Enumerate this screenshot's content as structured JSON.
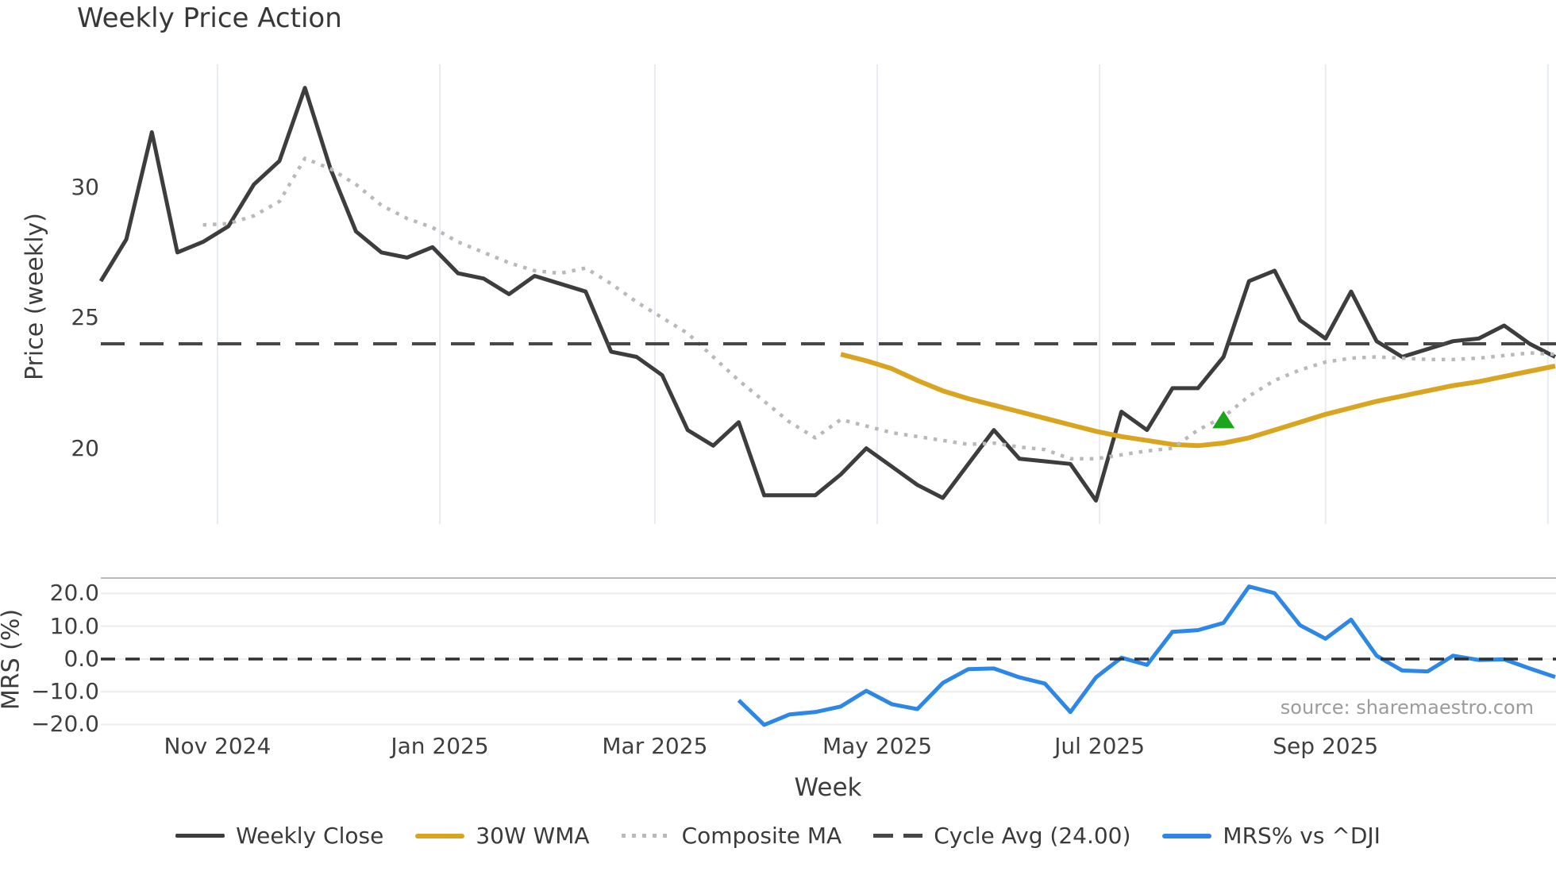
{
  "title": "Weekly Price Action",
  "source_text": "source: sharemaestro.com",
  "price_panel": {
    "ylabel": "Price (weekly)",
    "yticks": [
      {
        "label": "30",
        "value": 30
      },
      {
        "label": "25",
        "value": 25
      },
      {
        "label": "20",
        "value": 20
      }
    ]
  },
  "mrs_panel": {
    "ylabel": "MRS (%)",
    "yticks": [
      {
        "label": "20.0",
        "value": 20
      },
      {
        "label": "10.0",
        "value": 10
      },
      {
        "label": "0.0",
        "value": 0
      },
      {
        "label": "−10.0",
        "value": -10
      },
      {
        "label": "−20.0",
        "value": -20
      }
    ]
  },
  "x_axis": {
    "label": "Week",
    "ticks": [
      {
        "label": "Nov 2024",
        "week": 4.571
      },
      {
        "label": "Jan 2025",
        "week": 13.286
      },
      {
        "label": "Mar 2025",
        "week": 21.714
      },
      {
        "label": "May 2025",
        "week": 30.429
      },
      {
        "label": "Jul 2025",
        "week": 39.143
      },
      {
        "label": "Sep 2025",
        "week": 48.0
      },
      {
        "label": "",
        "week": 56.714
      }
    ]
  },
  "legend": {
    "items": [
      {
        "label": "Weekly Close",
        "swatch": "solid-dark-line"
      },
      {
        "label": "30W WMA",
        "swatch": "solid-gold-line"
      },
      {
        "label": "Composite MA",
        "swatch": "dotted-gray-line"
      },
      {
        "label": "Cycle Avg (24.00)",
        "swatch": "dashed-dark-line"
      },
      {
        "label": "MRS% vs ^DJI",
        "swatch": "solid-blue-line"
      }
    ]
  },
  "colors": {
    "weekly_close": "#3d3d3d",
    "wma_30w": "#d9a521",
    "composite_ma": "#b9b9b9",
    "cycle_avg_dash": "#474747",
    "mrs_line": "#2d87e6",
    "mrs_zero_dash": "#2f2f2f",
    "buy_marker_green": "#1aa51a",
    "grid_vertical": "#e8ecf2",
    "grid_horizontal": "#ececec",
    "mrs_top_border": "#bbbbbb",
    "tick_text": "#3f3f3f",
    "source_text": "#9b9b9b"
  },
  "chart_data": [
    {
      "type": "line",
      "panel": "price",
      "title": "Weekly Price Action",
      "xlabel": "Week",
      "ylabel": "Price (weekly)",
      "ylim": [
        17.1,
        34.7
      ],
      "grid": "vertical-only",
      "legend_position": "bottom-center",
      "x": [
        "2024-09-30",
        "2024-10-07",
        "2024-10-14",
        "2024-10-21",
        "2024-10-28",
        "2024-11-04",
        "2024-11-11",
        "2024-11-18",
        "2024-11-25",
        "2024-12-02",
        "2024-12-09",
        "2024-12-16",
        "2024-12-23",
        "2024-12-30",
        "2025-01-06",
        "2025-01-13",
        "2025-01-20",
        "2025-01-27",
        "2025-02-03",
        "2025-02-10",
        "2025-02-17",
        "2025-02-24",
        "2025-03-03",
        "2025-03-10",
        "2025-03-17",
        "2025-03-24",
        "2025-03-31",
        "2025-04-07",
        "2025-04-14",
        "2025-04-21",
        "2025-04-28",
        "2025-05-05",
        "2025-05-12",
        "2025-05-19",
        "2025-05-26",
        "2025-06-02",
        "2025-06-09",
        "2025-06-16",
        "2025-06-23",
        "2025-06-30",
        "2025-07-07",
        "2025-07-14",
        "2025-07-21",
        "2025-07-28",
        "2025-08-04",
        "2025-08-11",
        "2025-08-18",
        "2025-08-25",
        "2025-09-01",
        "2025-09-08",
        "2025-09-15",
        "2025-09-22",
        "2025-09-29",
        "2025-10-06",
        "2025-10-13",
        "2025-10-20",
        "2025-10-27",
        "2025-11-03"
      ],
      "series": [
        {
          "name": "Weekly Close",
          "color": "#3d3d3d",
          "style": "solid",
          "values": [
            26.4,
            28.0,
            32.1,
            27.5,
            27.9,
            28.5,
            30.1,
            31.0,
            33.8,
            30.7,
            28.3,
            27.5,
            27.3,
            27.7,
            26.7,
            26.5,
            25.9,
            26.6,
            26.3,
            26.0,
            23.7,
            23.5,
            22.8,
            20.7,
            20.1,
            21.0,
            18.2,
            18.2,
            18.2,
            19.0,
            20.0,
            19.3,
            18.6,
            18.1,
            19.4,
            20.7,
            19.6,
            19.5,
            19.4,
            18.0,
            21.4,
            20.7,
            22.3,
            22.3,
            23.5,
            26.4,
            26.8,
            24.9,
            24.2,
            26.0,
            24.1,
            23.5,
            23.8,
            24.1,
            24.2,
            24.7,
            24.0,
            23.5
          ]
        },
        {
          "name": "30W WMA",
          "color": "#d9a521",
          "style": "solid",
          "values": [
            null,
            null,
            null,
            null,
            null,
            null,
            null,
            null,
            null,
            null,
            null,
            null,
            null,
            null,
            null,
            null,
            null,
            null,
            null,
            null,
            null,
            null,
            null,
            null,
            null,
            null,
            null,
            null,
            null,
            23.6,
            23.35,
            23.05,
            22.6,
            22.2,
            21.9,
            21.65,
            21.4,
            21.15,
            20.9,
            20.65,
            20.45,
            20.3,
            20.15,
            20.1,
            20.2,
            20.4,
            20.7,
            21.0,
            21.3,
            21.55,
            21.8,
            22.0,
            22.2,
            22.4,
            22.55,
            22.75,
            22.95,
            23.15
          ]
        },
        {
          "name": "Composite MA",
          "color": "#b9b9b9",
          "style": "dotted",
          "values": [
            null,
            null,
            null,
            null,
            28.55,
            28.6,
            28.9,
            29.45,
            31.1,
            30.7,
            30.1,
            29.3,
            28.8,
            28.45,
            27.9,
            27.5,
            27.1,
            26.8,
            26.7,
            26.9,
            26.3,
            25.6,
            25.0,
            24.4,
            23.5,
            22.6,
            21.8,
            21.0,
            20.4,
            21.1,
            20.85,
            20.6,
            20.45,
            20.3,
            20.15,
            20.2,
            20.05,
            19.95,
            19.6,
            19.6,
            19.75,
            19.9,
            20.0,
            20.7,
            21.2,
            22.0,
            22.6,
            23.0,
            23.3,
            23.45,
            23.5,
            23.45,
            23.4,
            23.4,
            23.45,
            23.55,
            23.65,
            23.6
          ]
        },
        {
          "name": "Cycle Avg (24.00)",
          "color": "#474747",
          "style": "dashed",
          "constant": 24.0
        }
      ],
      "annotations": [
        {
          "type": "marker",
          "shape": "triangle-up",
          "color": "#1aa51a",
          "week_index": 44,
          "x": "2025-08-04",
          "value": 21.1
        }
      ]
    },
    {
      "type": "line",
      "panel": "mrs",
      "ylabel": "MRS (%)",
      "ylim": [
        -24,
        24.7
      ],
      "grid": "horizontal-only",
      "series": [
        {
          "name": "MRS% vs ^DJI",
          "color": "#2d87e6",
          "style": "solid",
          "values": [
            null,
            null,
            null,
            null,
            null,
            null,
            null,
            null,
            null,
            null,
            null,
            null,
            null,
            null,
            null,
            null,
            null,
            null,
            null,
            null,
            null,
            null,
            null,
            null,
            null,
            -12.6,
            -20.1,
            -16.9,
            -16.2,
            -14.5,
            -9.7,
            -13.8,
            -15.3,
            -7.3,
            -3.1,
            -2.9,
            -5.6,
            -7.5,
            -16.2,
            -5.6,
            0.4,
            -1.8,
            8.3,
            8.8,
            11.0,
            22.1,
            20.1,
            10.3,
            6.2,
            12.0,
            1.0,
            -3.5,
            -3.8,
            1.0,
            -0.3,
            -0.1,
            -2.9,
            -5.5
          ]
        },
        {
          "name": "Zero line",
          "color": "#2f2f2f",
          "style": "dashed",
          "constant": 0.0
        }
      ]
    }
  ]
}
